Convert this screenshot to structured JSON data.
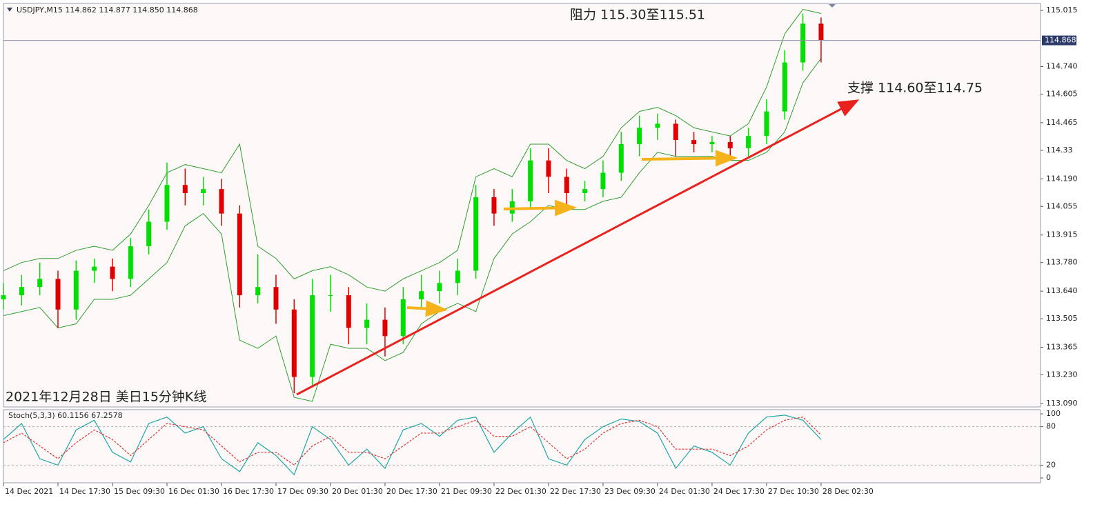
{
  "chart_data": [
    {
      "type": "candlestick",
      "title": "USDJPY,M15  114.862 114.877 114.850 114.868",
      "annotations": [
        "阻力 115.30至115.51",
        "支撑 114.60至114.75",
        "2021年12月28日 美日15分钟K线"
      ],
      "up_color": "#00e000",
      "down_color": "#e00000",
      "band_color": "#2e9e2e",
      "open": [
        113.6,
        113.62,
        113.66,
        113.7,
        113.55,
        113.74,
        113.76,
        113.7,
        113.86,
        113.98,
        114.16,
        114.12,
        114.14,
        114.02,
        113.62,
        113.66,
        113.55,
        113.22,
        113.62,
        113.62,
        113.46,
        113.5,
        113.42,
        113.6,
        113.64,
        113.68,
        113.74,
        114.1,
        114.02,
        114.08,
        114.28,
        114.2,
        114.12,
        114.14,
        114.22,
        114.36,
        114.44,
        114.46,
        114.38,
        114.36,
        114.37,
        114.34,
        114.4,
        114.52,
        114.76,
        114.95
      ],
      "high": [
        113.68,
        113.72,
        113.78,
        113.74,
        113.79,
        113.8,
        113.8,
        113.9,
        114.04,
        114.27,
        114.24,
        114.2,
        114.19,
        114.06,
        113.82,
        113.72,
        113.6,
        113.7,
        113.72,
        113.66,
        113.58,
        113.56,
        113.66,
        113.72,
        113.74,
        113.8,
        114.16,
        114.14,
        114.14,
        114.34,
        114.34,
        114.24,
        114.18,
        114.28,
        114.42,
        114.5,
        114.51,
        114.48,
        114.42,
        114.4,
        114.4,
        114.44,
        114.58,
        114.82,
        115.0,
        114.98
      ],
      "low": [
        113.55,
        113.57,
        113.62,
        113.46,
        113.5,
        113.68,
        113.64,
        113.66,
        113.82,
        113.94,
        114.06,
        114.06,
        113.96,
        113.56,
        113.58,
        113.48,
        113.14,
        113.18,
        113.54,
        113.38,
        113.38,
        113.32,
        113.38,
        113.56,
        113.58,
        113.62,
        113.7,
        113.96,
        113.98,
        114.04,
        114.12,
        114.06,
        114.08,
        114.1,
        114.18,
        114.3,
        114.38,
        114.3,
        114.32,
        114.32,
        114.3,
        114.3,
        114.36,
        114.48,
        114.72,
        114.76
      ],
      "close": [
        113.62,
        113.66,
        113.7,
        113.55,
        113.74,
        113.76,
        113.7,
        113.86,
        113.98,
        114.16,
        114.12,
        114.14,
        114.02,
        113.62,
        113.66,
        113.55,
        113.22,
        113.62,
        113.62,
        113.46,
        113.5,
        113.42,
        113.6,
        113.64,
        113.68,
        113.74,
        114.1,
        114.02,
        114.08,
        114.28,
        114.2,
        114.12,
        114.14,
        114.22,
        114.36,
        114.44,
        114.46,
        114.38,
        114.36,
        114.37,
        114.34,
        114.4,
        114.52,
        114.76,
        114.95,
        114.87
      ],
      "bands": {
        "upper": [
          113.74,
          113.78,
          113.8,
          113.8,
          113.84,
          113.86,
          113.84,
          113.92,
          114.06,
          114.22,
          114.26,
          114.24,
          114.22,
          114.36,
          113.86,
          113.8,
          113.7,
          113.74,
          113.76,
          113.72,
          113.66,
          113.64,
          113.7,
          113.74,
          113.78,
          113.84,
          114.2,
          114.24,
          114.2,
          114.36,
          114.36,
          114.28,
          114.24,
          114.3,
          114.44,
          114.52,
          114.54,
          114.5,
          114.44,
          114.42,
          114.4,
          114.46,
          114.64,
          114.9,
          115.02,
          115.0
        ],
        "lower": [
          113.52,
          113.54,
          113.56,
          113.46,
          113.48,
          113.6,
          113.6,
          113.62,
          113.7,
          113.78,
          113.96,
          114.02,
          113.92,
          113.4,
          113.36,
          113.42,
          113.12,
          113.1,
          113.38,
          113.36,
          113.36,
          113.3,
          113.34,
          113.48,
          113.54,
          113.58,
          113.54,
          113.8,
          113.92,
          113.98,
          114.06,
          114.04,
          114.04,
          114.08,
          114.1,
          114.22,
          114.32,
          114.3,
          114.3,
          114.3,
          114.28,
          114.28,
          114.32,
          114.42,
          114.66,
          114.78
        ]
      },
      "last_price": 114.868,
      "xlim": [
        0,
        57.08
      ],
      "xticks": [
        {
          "value": 0,
          "label": "14 Dec 2021"
        },
        {
          "value": 3,
          "label": "14 Dec 17:30"
        },
        {
          "value": 6,
          "label": "15 Dec 09:30"
        },
        {
          "value": 9,
          "label": "16 Dec 01:30"
        },
        {
          "value": 12,
          "label": "16 Dec 17:30"
        },
        {
          "value": 15,
          "label": "17 Dec 09:30"
        },
        {
          "value": 18,
          "label": "20 Dec 01:30"
        },
        {
          "value": 21,
          "label": "20 Dec 17:30"
        },
        {
          "value": 24,
          "label": "21 Dec 09:30"
        },
        {
          "value": 27,
          "label": "22 Dec 01:30"
        },
        {
          "value": 30,
          "label": "22 Dec 17:30"
        },
        {
          "value": 33,
          "label": "23 Dec 09:30"
        },
        {
          "value": 36,
          "label": "24 Dec 01:30"
        },
        {
          "value": 39,
          "label": "24 Dec 17:30"
        },
        {
          "value": 42,
          "label": "27 Dec 10:30"
        },
        {
          "value": 45,
          "label": "28 Dec 02:30"
        }
      ],
      "ylim": [
        113.073,
        115.049
      ],
      "yticks": [
        115.015,
        {
          "value": 114.74,
          "label": "114.740"
        },
        114.605,
        114.465,
        114.33,
        {
          "value": 114.19,
          "label": "114.190"
        },
        114.055,
        113.915,
        {
          "value": 113.78,
          "label": "113.780"
        },
        {
          "value": 113.64,
          "label": "113.640"
        },
        113.505,
        113.365,
        {
          "value": 113.23,
          "label": "113.230"
        },
        {
          "value": 113.09,
          "label": "113.090"
        }
      ]
    },
    {
      "type": "line",
      "title": "Stoch(5,3,3) 60.1156 67.2578",
      "series": [
        {
          "color": "#1fa5a5",
          "values": [
            60,
            85,
            30,
            20,
            75,
            90,
            40,
            25,
            85,
            95,
            70,
            80,
            30,
            10,
            55,
            35,
            5,
            80,
            60,
            20,
            45,
            15,
            75,
            85,
            65,
            90,
            95,
            40,
            70,
            95,
            30,
            20,
            60,
            80,
            92,
            88,
            70,
            15,
            50,
            40,
            20,
            70,
            95,
            98,
            90,
            60
          ]
        },
        {
          "color": "#e03030",
          "values": [
            55,
            70,
            50,
            30,
            55,
            75,
            60,
            35,
            60,
            85,
            80,
            75,
            50,
            25,
            40,
            40,
            20,
            50,
            65,
            40,
            40,
            30,
            50,
            70,
            70,
            80,
            90,
            65,
            65,
            80,
            55,
            30,
            45,
            70,
            85,
            90,
            80,
            45,
            45,
            45,
            35,
            50,
            75,
            90,
            95,
            67
          ]
        }
      ],
      "levels": [
        80,
        20
      ],
      "ylim": [
        -7.5,
        106.5
      ],
      "yticks": [
        100,
        80,
        20,
        0
      ]
    }
  ]
}
